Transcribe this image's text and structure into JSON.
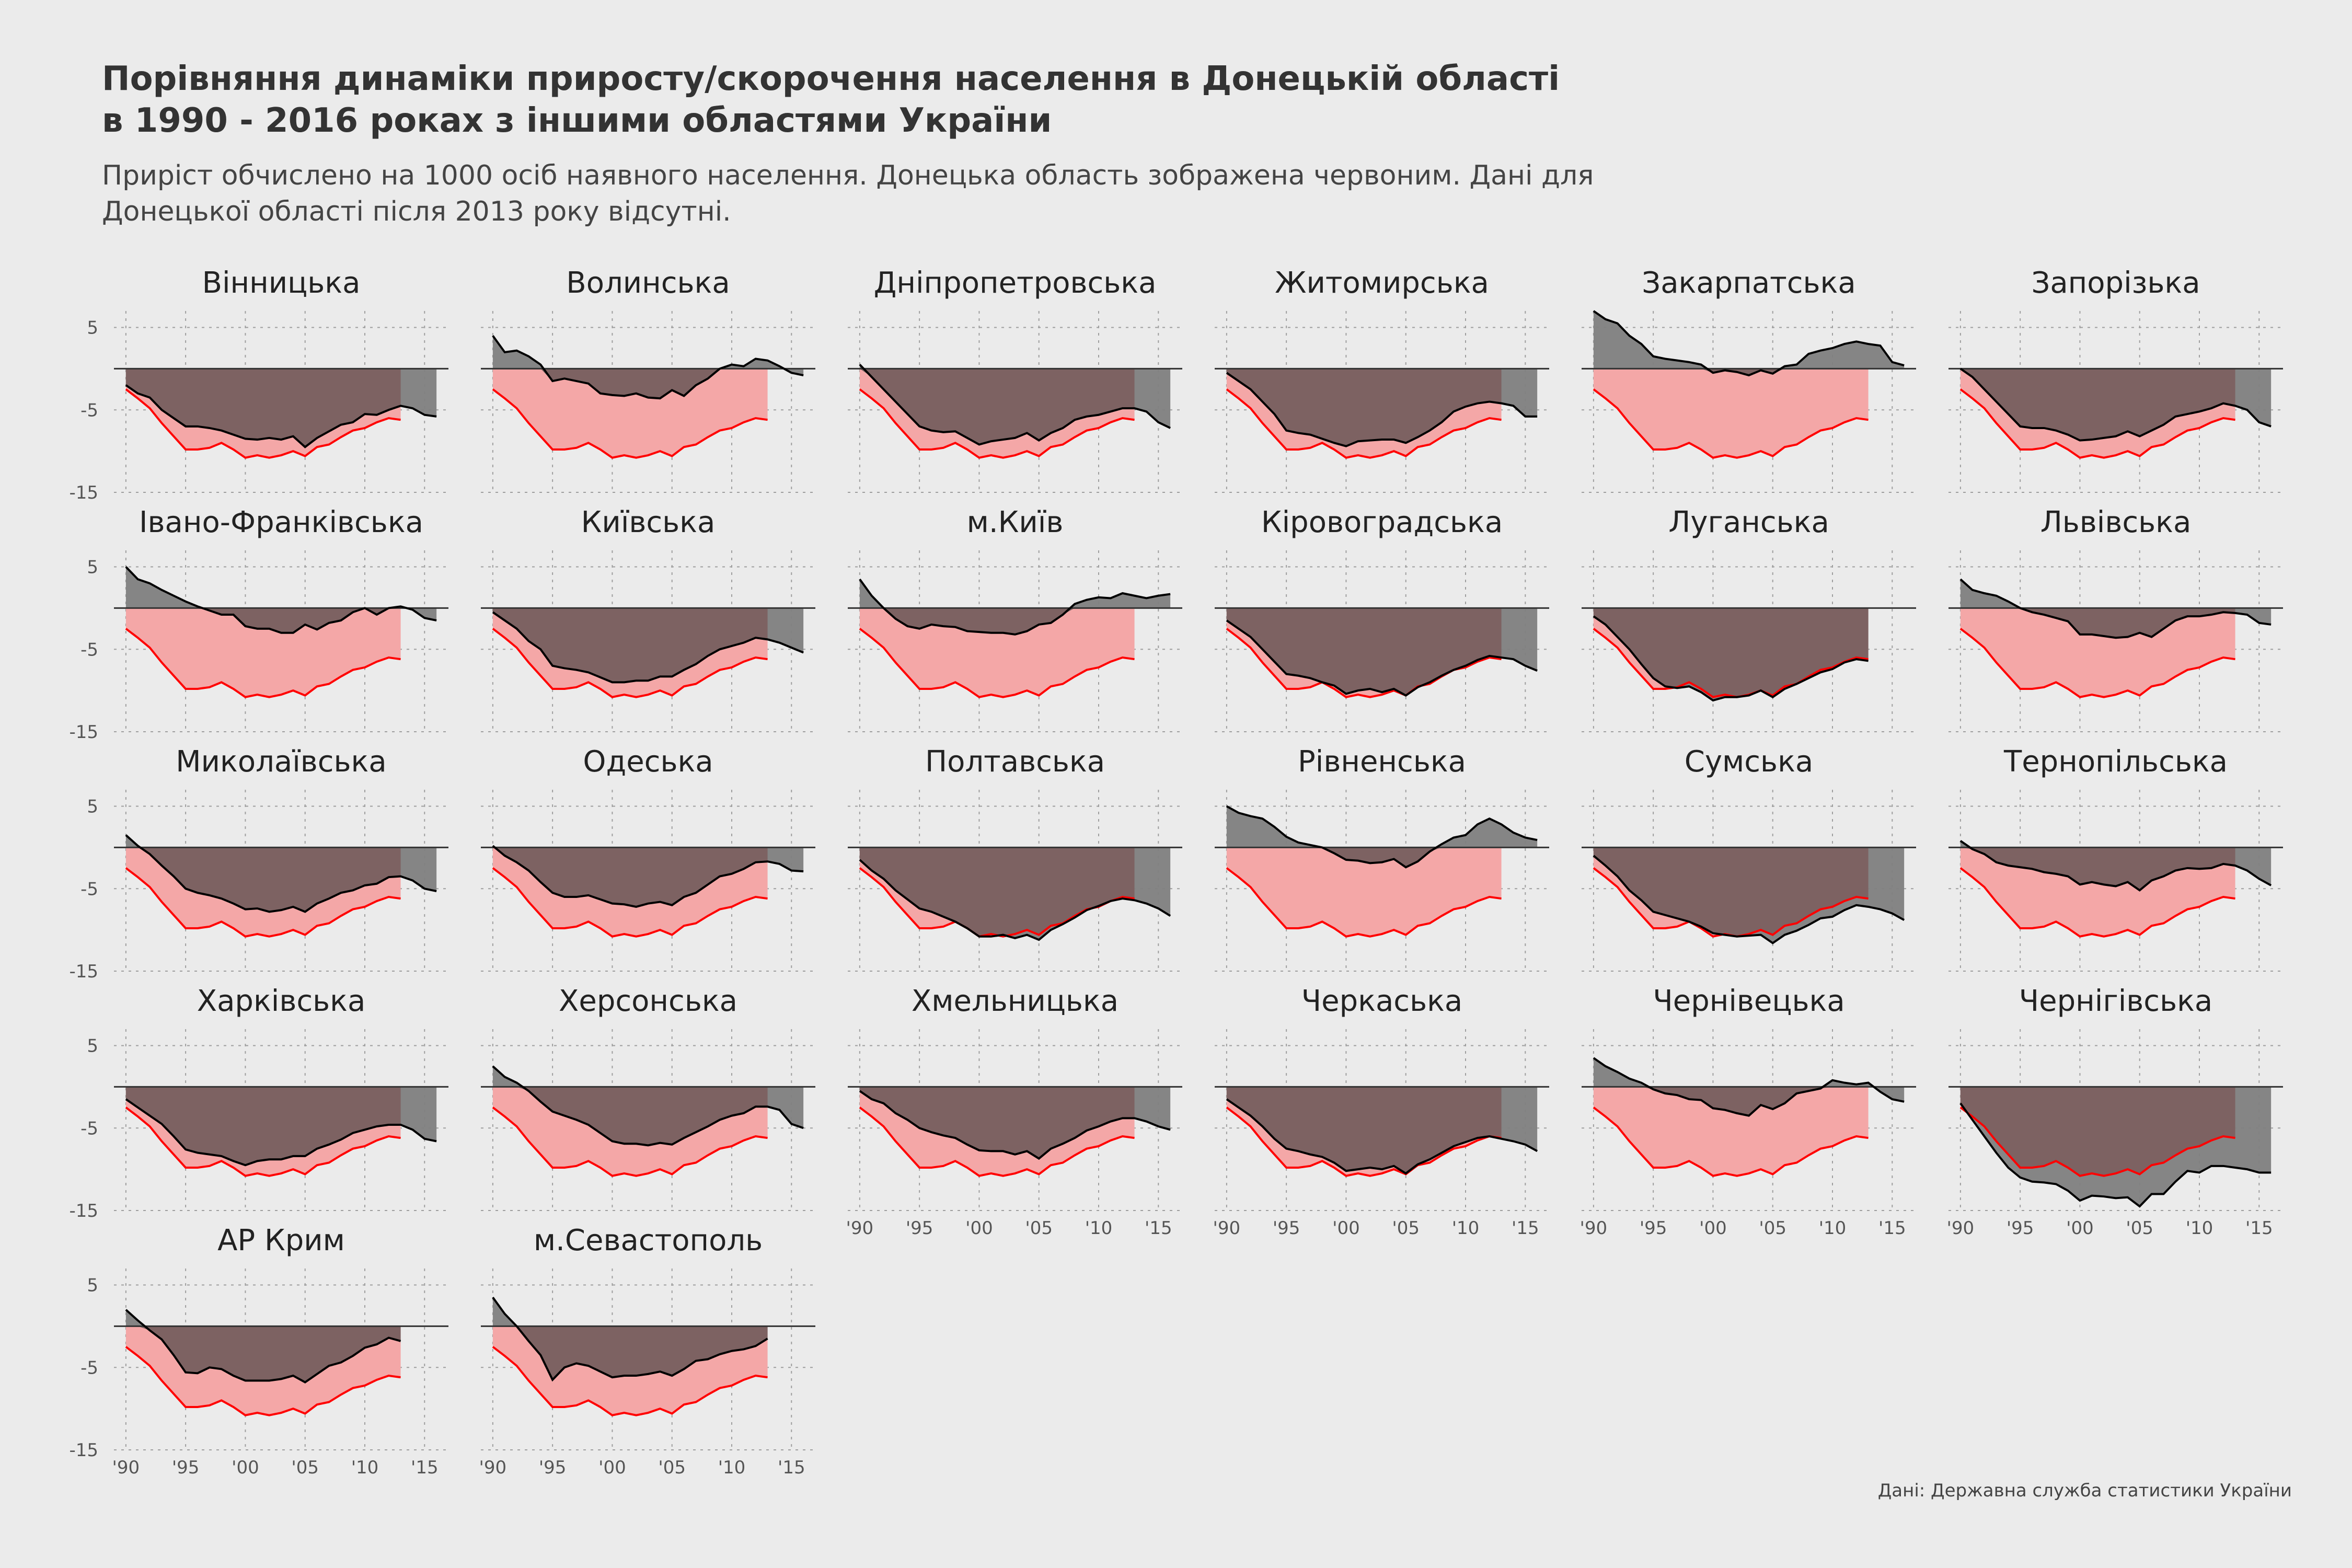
{
  "title_lines": [
    "Порівняння динаміки приросту/скорочення населення в Донецькій області",
    "в 1990 - 2016 роках з іншими областями України"
  ],
  "subtitle_lines": [
    "Приріст обчислено на 1000 осіб наявного населення. Донецька область зображена червоним. Дані для",
    "Донецької області після 2013 року відсутні."
  ],
  "caption": "Дані: Державна служба статистики України",
  "colors": {
    "background": "#ebebeb",
    "region_line": "#000000",
    "region_fill": "#808080",
    "donetsk_line": "#ff0000",
    "donetsk_fill": "#f4a7a7",
    "overlap_fill": "#7d6262"
  },
  "chart_data": {
    "type": "area",
    "layout": "small-multiples",
    "ncol": 6,
    "x": [
      1990,
      1991,
      1992,
      1993,
      1994,
      1995,
      1996,
      1997,
      1998,
      1999,
      2000,
      2001,
      2002,
      2003,
      2004,
      2005,
      2006,
      2007,
      2008,
      2009,
      2010,
      2011,
      2012,
      2013,
      2014,
      2015,
      2016
    ],
    "xlim": [
      1989,
      2017
    ],
    "ylim": [
      -15,
      7
    ],
    "y_ticks": [
      5,
      -5,
      -15
    ],
    "y_tick_labels": [
      "5",
      "-5",
      "-15"
    ],
    "x_ticks": [
      1990,
      1995,
      2000,
      2005,
      2010,
      2015
    ],
    "x_tick_labels": [
      "'90",
      "'95",
      "'00",
      "'05",
      "'10",
      "'15"
    ],
    "grid": true,
    "reference": {
      "region": "Донецька",
      "values": [
        -2.5,
        -3.6,
        -4.8,
        -6.6,
        -8.2,
        -9.8,
        -9.8,
        -9.6,
        -9.0,
        -9.8,
        -10.8,
        -10.5,
        -10.8,
        -10.5,
        -10.0,
        -10.6,
        -9.5,
        -9.2,
        -8.3,
        -7.5,
        -7.2,
        -6.5,
        -6.0,
        -6.2
      ]
    },
    "panels": [
      {
        "name": "Вінницька",
        "values": [
          -2,
          -3,
          -3.5,
          -5,
          -6,
          -7,
          -7,
          -7.2,
          -7.5,
          -8,
          -8.5,
          -8.6,
          -8.4,
          -8.6,
          -8.2,
          -9.5,
          -8.4,
          -7.6,
          -6.8,
          -6.5,
          -5.5,
          -5.6,
          -5.0,
          -4.5,
          -4.8,
          -5.6,
          -5.8
        ]
      },
      {
        "name": "Волинська",
        "values": [
          4,
          2,
          2.2,
          1.5,
          0.5,
          -1.5,
          -1.2,
          -1.5,
          -1.8,
          -3,
          -3.2,
          -3.3,
          -3.0,
          -3.5,
          -3.6,
          -2.6,
          -3.3,
          -2.0,
          -1.2,
          0,
          0.5,
          0.3,
          1.2,
          1.0,
          0.3,
          -0.5,
          -0.8
        ]
      },
      {
        "name": "Дніпропетровська",
        "values": [
          0.5,
          -1,
          -2.5,
          -4,
          -5.5,
          -7,
          -7.5,
          -7.7,
          -7.6,
          -8.4,
          -9.2,
          -8.8,
          -8.6,
          -8.4,
          -7.8,
          -8.7,
          -7.8,
          -7.2,
          -6.2,
          -5.8,
          -5.6,
          -5.2,
          -4.8,
          -4.8,
          -5.2,
          -6.5,
          -7.2
        ]
      },
      {
        "name": "Житомирська",
        "values": [
          -0.5,
          -1.5,
          -2.5,
          -4,
          -5.5,
          -7.5,
          -7.8,
          -8,
          -8.5,
          -9,
          -9.4,
          -8.8,
          -8.7,
          -8.6,
          -8.6,
          -9.0,
          -8.3,
          -7.5,
          -6.5,
          -5.2,
          -4.6,
          -4.2,
          -4.0,
          -4.2,
          -4.5,
          -5.8,
          -5.8
        ]
      },
      {
        "name": "Закарпатська",
        "values": [
          7,
          6,
          5.5,
          4,
          3,
          1.5,
          1.2,
          1.0,
          0.8,
          0.5,
          -0.5,
          -0.2,
          -0.4,
          -0.8,
          -0.2,
          -0.6,
          0.3,
          0.5,
          1.8,
          2.2,
          2.5,
          3.0,
          3.3,
          3.0,
          2.8,
          0.8,
          0.4
        ]
      },
      {
        "name": "Запорізька",
        "values": [
          0,
          -1,
          -2.5,
          -4,
          -5.5,
          -7,
          -7.2,
          -7.2,
          -7.5,
          -8,
          -8.7,
          -8.6,
          -8.4,
          -8.2,
          -7.6,
          -8.2,
          -7.5,
          -6.8,
          -5.8,
          -5.5,
          -5.2,
          -4.8,
          -4.2,
          -4.5,
          -5,
          -6.5,
          -7
        ]
      },
      {
        "name": "Івано-Франківська",
        "values": [
          5,
          3.5,
          3,
          2.2,
          1.5,
          0.8,
          0.2,
          -0.3,
          -0.8,
          -0.8,
          -2.2,
          -2.5,
          -2.5,
          -3.0,
          -3.0,
          -2.0,
          -2.6,
          -1.8,
          -1.5,
          -0.5,
          0,
          -0.8,
          0,
          0.2,
          -0.2,
          -1.2,
          -1.5
        ]
      },
      {
        "name": "Київська",
        "values": [
          -0.5,
          -1.5,
          -2.5,
          -4,
          -5,
          -7,
          -7.3,
          -7.5,
          -7.8,
          -8.4,
          -9.0,
          -9.0,
          -8.8,
          -8.8,
          -8.3,
          -8.3,
          -7.5,
          -6.8,
          -5.8,
          -5.0,
          -4.6,
          -4.2,
          -3.6,
          -3.8,
          -4.2,
          -4.8,
          -5.4
        ]
      },
      {
        "name": "м.Київ",
        "values": [
          3.5,
          1.5,
          0,
          -1.3,
          -2.2,
          -2.5,
          -2.0,
          -2.2,
          -2.3,
          -2.8,
          -2.9,
          -3.0,
          -3.0,
          -3.2,
          -2.8,
          -2.0,
          -1.8,
          -0.8,
          0.5,
          1.0,
          1.3,
          1.2,
          1.8,
          1.5,
          1.2,
          1.5,
          1.7
        ]
      },
      {
        "name": "Кіровоградська",
        "values": [
          -1.5,
          -2.5,
          -3.5,
          -5,
          -6.5,
          -8,
          -8.2,
          -8.5,
          -9.0,
          -9.4,
          -10.4,
          -10.0,
          -9.8,
          -10.2,
          -9.8,
          -10.6,
          -9.6,
          -9.0,
          -8.2,
          -7.5,
          -7.0,
          -6.3,
          -5.8,
          -6.0,
          -6.2,
          -7.0,
          -7.6
        ]
      },
      {
        "name": "Луганська",
        "values": [
          -1,
          -2,
          -3.5,
          -5,
          -6.8,
          -8.5,
          -9.5,
          -9.7,
          -9.5,
          -10.2,
          -11.2,
          -10.8,
          -10.8,
          -10.6,
          -10.0,
          -10.8,
          -9.8,
          -9.2,
          -8.5,
          -7.8,
          -7.4,
          -6.6,
          -6.2,
          -6.4
        ]
      },
      {
        "name": "Львівська",
        "values": [
          3.5,
          2.2,
          1.8,
          1.5,
          0.8,
          0,
          -0.5,
          -0.8,
          -1.2,
          -1.6,
          -3.2,
          -3.2,
          -3.4,
          -3.6,
          -3.5,
          -3.0,
          -3.5,
          -2.5,
          -1.5,
          -1.0,
          -1.0,
          -0.8,
          -0.5,
          -0.6,
          -0.8,
          -1.8,
          -2.0
        ]
      },
      {
        "name": "Миколаївська",
        "values": [
          1.5,
          0.2,
          -0.8,
          -2.2,
          -3.5,
          -5,
          -5.5,
          -5.8,
          -6.2,
          -6.8,
          -7.5,
          -7.4,
          -7.8,
          -7.6,
          -7.2,
          -7.8,
          -6.8,
          -6.2,
          -5.5,
          -5.2,
          -4.6,
          -4.4,
          -3.6,
          -3.5,
          -4.0,
          -5.0,
          -5.3
        ]
      },
      {
        "name": "Одеська",
        "values": [
          0.2,
          -1.0,
          -1.8,
          -2.8,
          -4.2,
          -5.5,
          -6.0,
          -6.0,
          -5.8,
          -6.3,
          -6.8,
          -6.9,
          -7.2,
          -6.8,
          -6.6,
          -7.0,
          -6.0,
          -5.5,
          -4.5,
          -3.5,
          -3.2,
          -2.6,
          -1.8,
          -1.7,
          -2.0,
          -2.8,
          -2.9
        ]
      },
      {
        "name": "Полтавська",
        "values": [
          -1.5,
          -2.8,
          -3.8,
          -5.2,
          -6.3,
          -7.4,
          -7.8,
          -8.4,
          -9.0,
          -9.8,
          -10.8,
          -10.8,
          -10.6,
          -11.0,
          -10.6,
          -11.2,
          -10.0,
          -9.3,
          -8.5,
          -7.6,
          -7.1,
          -6.5,
          -6.2,
          -6.4,
          -6.8,
          -7.4,
          -8.3
        ]
      },
      {
        "name": "Рівненська",
        "values": [
          5,
          4.2,
          3.8,
          3.5,
          2.5,
          1.3,
          0.6,
          0.3,
          0,
          -0.7,
          -1.5,
          -1.6,
          -1.9,
          -1.8,
          -1.4,
          -2.4,
          -1.7,
          -0.5,
          0.4,
          1.2,
          1.5,
          2.8,
          3.5,
          2.8,
          1.8,
          1.2,
          0.9
        ]
      },
      {
        "name": "Сумська",
        "values": [
          -1,
          -2.2,
          -3.5,
          -5.2,
          -6.4,
          -7.8,
          -8.2,
          -8.6,
          -9.0,
          -9.6,
          -10.4,
          -10.6,
          -10.8,
          -10.7,
          -10.6,
          -11.6,
          -10.6,
          -10.1,
          -9.4,
          -8.6,
          -8.4,
          -7.6,
          -7.0,
          -7.2,
          -7.5,
          -8.0,
          -8.8
        ]
      },
      {
        "name": "Тернопільська",
        "values": [
          0.8,
          -0.2,
          -0.8,
          -1.8,
          -2.2,
          -2.4,
          -2.6,
          -3.0,
          -3.2,
          -3.5,
          -4.5,
          -4.2,
          -4.5,
          -4.7,
          -4.2,
          -5.2,
          -4.0,
          -3.5,
          -2.8,
          -2.5,
          -2.6,
          -2.5,
          -2.0,
          -2.2,
          -2.8,
          -3.8,
          -4.6
        ]
      },
      {
        "name": "Харківська",
        "values": [
          -1.5,
          -2.5,
          -3.5,
          -4.5,
          -6,
          -7.6,
          -8.0,
          -8.2,
          -8.4,
          -9.0,
          -9.5,
          -9.0,
          -8.8,
          -8.8,
          -8.4,
          -8.4,
          -7.5,
          -7.0,
          -6.4,
          -5.6,
          -5.2,
          -4.8,
          -4.6,
          -4.6,
          -5.2,
          -6.3,
          -6.6
        ]
      },
      {
        "name": "Херсонська",
        "values": [
          2.5,
          1.2,
          0.5,
          -0.5,
          -1.8,
          -3.0,
          -3.5,
          -4.0,
          -4.6,
          -5.6,
          -6.6,
          -6.9,
          -6.9,
          -7.1,
          -6.8,
          -7.0,
          -6.2,
          -5.5,
          -4.8,
          -4.0,
          -3.5,
          -3.2,
          -2.4,
          -2.4,
          -2.8,
          -4.5,
          -5.0
        ]
      },
      {
        "name": "Хмельницька",
        "values": [
          -0.5,
          -1.5,
          -2,
          -3.2,
          -4.0,
          -5.0,
          -5.5,
          -5.9,
          -6.2,
          -7.0,
          -7.7,
          -7.8,
          -7.8,
          -8.2,
          -7.8,
          -8.7,
          -7.5,
          -6.9,
          -6.2,
          -5.3,
          -4.8,
          -4.2,
          -3.8,
          -3.8,
          -4.2,
          -4.8,
          -5.2
        ]
      },
      {
        "name": "Черкаська",
        "values": [
          -1.5,
          -2.5,
          -3.5,
          -4.8,
          -6.3,
          -7.5,
          -7.8,
          -8.2,
          -8.5,
          -9.2,
          -10.2,
          -10.0,
          -9.8,
          -10.0,
          -9.6,
          -10.5,
          -9.4,
          -8.8,
          -8.0,
          -7.2,
          -6.7,
          -6.2,
          -6.0,
          -6.3,
          -6.6,
          -7.0,
          -7.8
        ]
      },
      {
        "name": "Чернівецька",
        "values": [
          3.5,
          2.5,
          1.8,
          1.0,
          0.5,
          -0.3,
          -0.8,
          -1.0,
          -1.5,
          -1.6,
          -2.6,
          -2.8,
          -3.2,
          -3.5,
          -2.2,
          -2.7,
          -2.0,
          -0.8,
          -0.5,
          -0.2,
          0.8,
          0.5,
          0.3,
          0.5,
          -0.6,
          -1.5,
          -1.8
        ]
      },
      {
        "name": "Чернігівська",
        "values": [
          -2,
          -4,
          -6.0,
          -8.0,
          -9.8,
          -11.0,
          -11.5,
          -11.6,
          -11.8,
          -12.6,
          -13.8,
          -13.2,
          -13.3,
          -13.5,
          -13.4,
          -14.5,
          -13.0,
          -13.0,
          -11.5,
          -10.2,
          -10.4,
          -9.6,
          -9.6,
          -9.8,
          -10.0,
          -10.4,
          -10.4
        ]
      },
      {
        "name": "АР Крим",
        "values": [
          2,
          0.7,
          -0.5,
          -1.6,
          -3.5,
          -5.6,
          -5.7,
          -5.0,
          -5.2,
          -6.0,
          -6.6,
          -6.6,
          -6.6,
          -6.4,
          -6.0,
          -6.8,
          -5.8,
          -4.8,
          -4.4,
          -3.6,
          -2.6,
          -2.2,
          -1.4,
          -1.8
        ]
      },
      {
        "name": "м.Севастополь",
        "values": [
          3.5,
          1.5,
          0,
          -1.8,
          -3.5,
          -6.5,
          -5.0,
          -4.5,
          -4.8,
          -5.5,
          -6.2,
          -6.0,
          -6.0,
          -5.8,
          -5.5,
          -6.0,
          -5.2,
          -4.2,
          -4.0,
          -3.4,
          -3.0,
          -2.8,
          -2.4,
          -1.5
        ]
      }
    ]
  }
}
